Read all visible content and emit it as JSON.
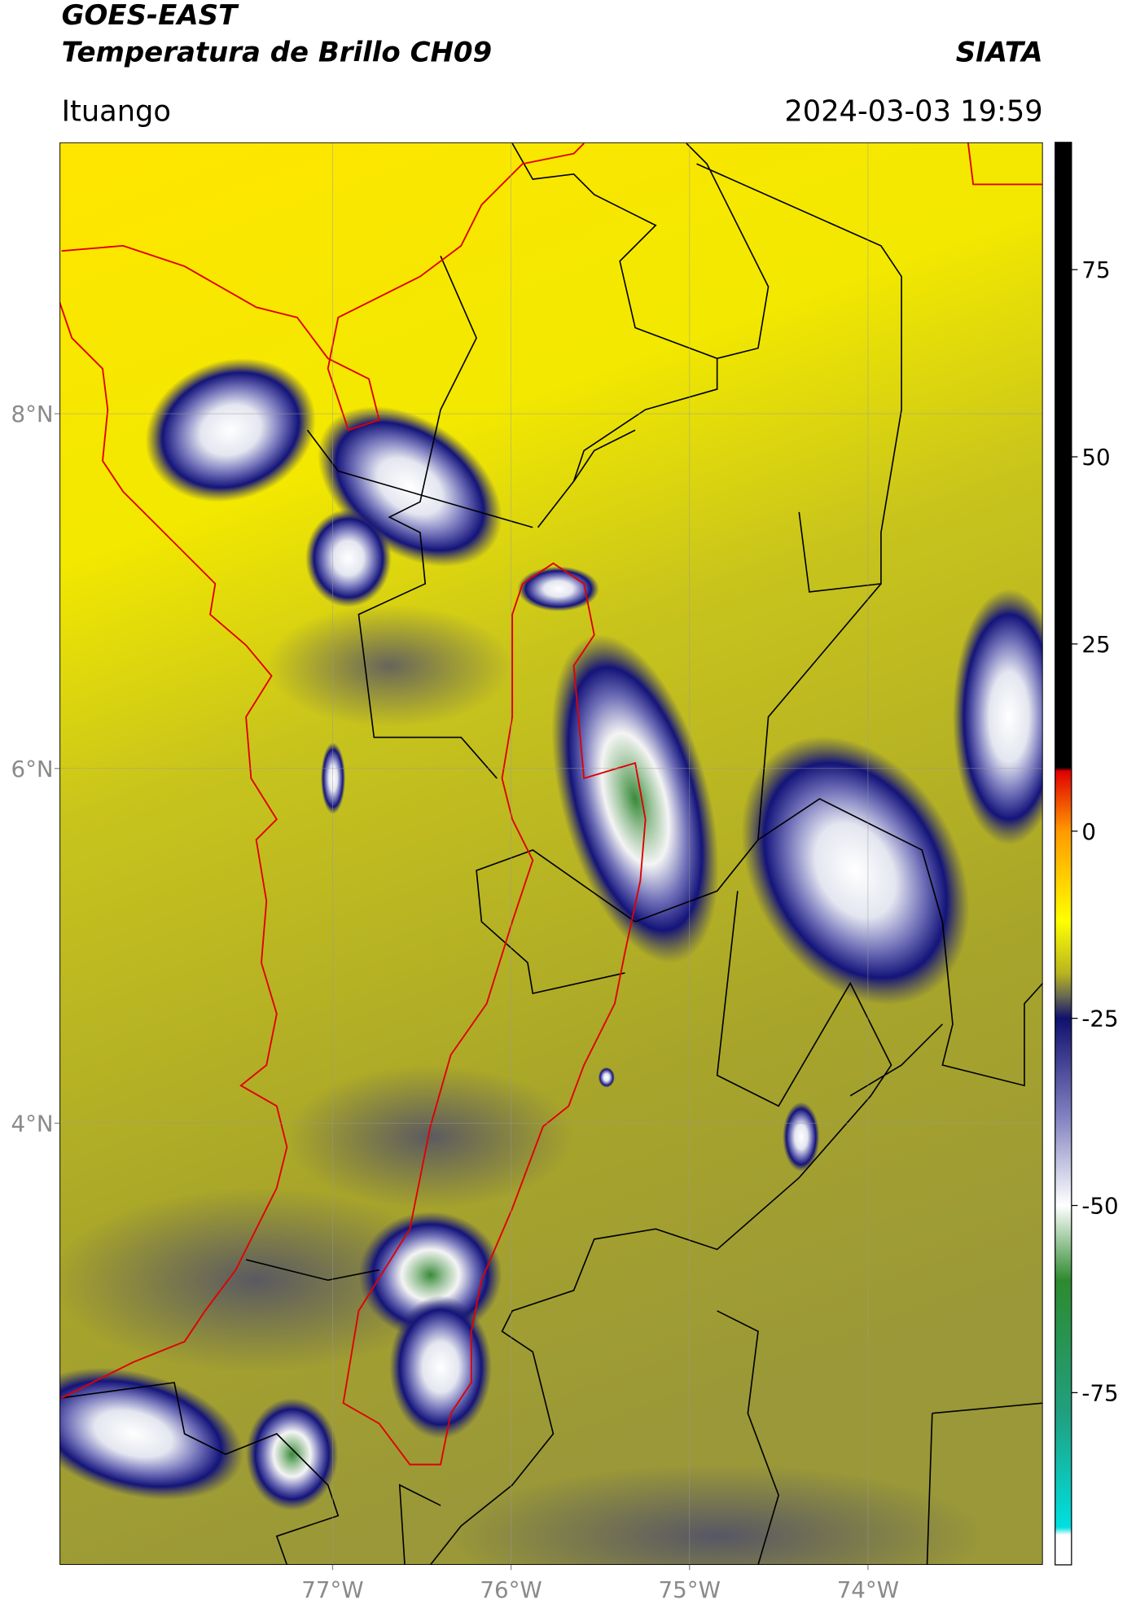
{
  "header": {
    "title": "GOES-EAST",
    "subtitle": "Temperatura de Brillo CH09",
    "source": "SIATA",
    "location": "Ituango",
    "datetime": "2024-03-03 19:59"
  },
  "map": {
    "xlim": [
      -78.53,
      -73.02
    ],
    "ylim": [
      1.51,
      9.53
    ],
    "xticks": [
      {
        "value": -77,
        "label": "77°W"
      },
      {
        "value": -76,
        "label": "76°W"
      },
      {
        "value": -75,
        "label": "75°W"
      },
      {
        "value": -74,
        "label": "74°W"
      }
    ],
    "yticks": [
      {
        "value": 8,
        "label": "8°N"
      },
      {
        "value": 6,
        "label": "6°N"
      },
      {
        "value": 4,
        "label": "4°N"
      }
    ],
    "grid": true
  },
  "colorbar": {
    "lim": [
      -98,
      92
    ],
    "ticks": [
      75,
      50,
      25,
      0,
      -25,
      -50,
      -75
    ],
    "stops": [
      {
        "value": 92,
        "color": "#000000"
      },
      {
        "value": 8.5,
        "color": "#000000"
      },
      {
        "value": 8,
        "color": "#e00000"
      },
      {
        "value": 0,
        "color": "#ff9a00"
      },
      {
        "value": -12,
        "color": "#ffff00"
      },
      {
        "value": -19,
        "color": "#b8b420"
      },
      {
        "value": -22,
        "color": "#6a6a50"
      },
      {
        "value": -25,
        "color": "#10106e"
      },
      {
        "value": -38,
        "color": "#8080c0"
      },
      {
        "value": -50,
        "color": "#ffffff"
      },
      {
        "value": -60,
        "color": "#2e8a2e"
      },
      {
        "value": -78,
        "color": "#20a080"
      },
      {
        "value": -93,
        "color": "#00e0e0"
      },
      {
        "value": -94,
        "color": "#ffffff"
      },
      {
        "value": -98,
        "color": "#ffffff"
      }
    ]
  }
}
